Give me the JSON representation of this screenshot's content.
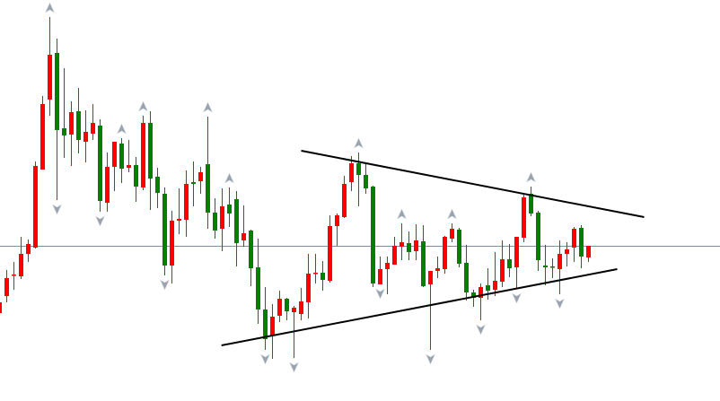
{
  "chart_data": {
    "type": "candlestick",
    "title": "",
    "colors": {
      "rising": "#ff0000",
      "falling": "#008000",
      "background": "#ffffff",
      "level_line": "#7f8c99",
      "trendline": "#000000",
      "fractal_marker": "#9aa3ad"
    },
    "grid": false,
    "axes_visible": false,
    "ohlc_columns": [
      "open",
      "high",
      "low",
      "close"
    ],
    "candles": [
      [
        98,
        112,
        98,
        110
      ],
      [
        117,
        146,
        110,
        137
      ],
      [
        140,
        155,
        124,
        141
      ],
      [
        139,
        183,
        136,
        164
      ],
      [
        164,
        180,
        155,
        175
      ],
      [
        171,
        267,
        170,
        262
      ],
      [
        258,
        340,
        258,
        331
      ],
      [
        336,
        428,
        318,
        386
      ],
      [
        388,
        404,
        224,
        302
      ],
      [
        304,
        371,
        271,
        296
      ],
      [
        297,
        334,
        262,
        322
      ],
      [
        323,
        349,
        276,
        291
      ],
      [
        289,
        324,
        266,
        300
      ],
      [
        298,
        331,
        291,
        310
      ],
      [
        307,
        314,
        211,
        223
      ],
      [
        221,
        277,
        211,
        261
      ],
      [
        261,
        289,
        234,
        289
      ],
      [
        287,
        293,
        243,
        259
      ],
      [
        260,
        291,
        255,
        263
      ],
      [
        263,
        272,
        222,
        239
      ],
      [
        238,
        318,
        235,
        310
      ],
      [
        310,
        323,
        213,
        248
      ],
      [
        250,
        260,
        215,
        232
      ],
      [
        231,
        238,
        140,
        151
      ],
      [
        151,
        212,
        131,
        201
      ],
      [
        201,
        237,
        186,
        203
      ],
      [
        202,
        257,
        183,
        242
      ],
      [
        244,
        267,
        217,
        242
      ],
      [
        245,
        261,
        231,
        255
      ],
      [
        264,
        317,
        192,
        210
      ],
      [
        210,
        226,
        181,
        190
      ],
      [
        192,
        237,
        167,
        217
      ],
      [
        219,
        238,
        194,
        209
      ],
      [
        225,
        234,
        150,
        176
      ],
      [
        179,
        218,
        172,
        187
      ],
      [
        190,
        191,
        128,
        148
      ],
      [
        149,
        181,
        86,
        102
      ],
      [
        102,
        127,
        57,
        69
      ],
      [
        73,
        108,
        47,
        94
      ],
      [
        95,
        123,
        88,
        114
      ],
      [
        114,
        115,
        90,
        100
      ],
      [
        99,
        106,
        48,
        104
      ],
      [
        97,
        126,
        90,
        111
      ],
      [
        110,
        164,
        92,
        142
      ],
      [
        142,
        164,
        131,
        143
      ],
      [
        143,
        156,
        123,
        135
      ],
      [
        134,
        207,
        132,
        195
      ],
      [
        195,
        209,
        173,
        207
      ],
      [
        205,
        251,
        204,
        242
      ],
      [
        244,
        273,
        234,
        265
      ],
      [
        265,
        277,
        217,
        252
      ],
      [
        252,
        265,
        231,
        237
      ],
      [
        239,
        240,
        127,
        131
      ],
      [
        130,
        161,
        130,
        147
      ],
      [
        147,
        161,
        119,
        154
      ],
      [
        152,
        183,
        152,
        173
      ],
      [
        172,
        198,
        157,
        177
      ],
      [
        176,
        189,
        157,
        166
      ],
      [
        167,
        197,
        157,
        179
      ],
      [
        178,
        196,
        127,
        128
      ],
      [
        130,
        145,
        57,
        145
      ],
      [
        145,
        161,
        137,
        148
      ],
      [
        147,
        184,
        142,
        183
      ],
      [
        181,
        198,
        177,
        192
      ],
      [
        191,
        193,
        149,
        153
      ],
      [
        154,
        174,
        112,
        121
      ],
      [
        121,
        124,
        105,
        115
      ],
      [
        115,
        131,
        90,
        127
      ],
      [
        129,
        148,
        113,
        123
      ],
      [
        124,
        166,
        117,
        134
      ],
      [
        133,
        179,
        127,
        158
      ],
      [
        158,
        175,
        138,
        148
      ],
      [
        149,
        183,
        125,
        183
      ],
      [
        182,
        232,
        177,
        227
      ],
      [
        231,
        239,
        206,
        209
      ],
      [
        210,
        212,
        145,
        157
      ],
      [
        151,
        174,
        129,
        149
      ],
      [
        150,
        159,
        137,
        149
      ],
      [
        147,
        179,
        119,
        164
      ],
      [
        164,
        177,
        150,
        169
      ],
      [
        171,
        194,
        155,
        192
      ],
      [
        193,
        196,
        148,
        161
      ],
      [
        160,
        173,
        155,
        173
      ]
    ],
    "fractals_up": [
      7,
      17,
      20,
      29,
      32,
      50,
      56,
      63,
      74
    ],
    "fractals_down": [
      8,
      14,
      23,
      37,
      41,
      53,
      60,
      67,
      72,
      78
    ],
    "horizontal_level": 173,
    "trendlines": [
      {
        "name": "upper",
        "from": [
          42,
          279
        ],
        "to": [
          89.75,
          205
        ]
      },
      {
        "name": "lower",
        "from": [
          30.9,
          62
        ],
        "to": [
          86,
          147
        ]
      }
    ]
  }
}
